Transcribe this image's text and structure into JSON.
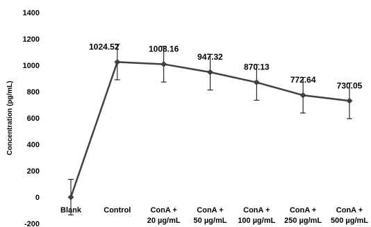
{
  "chart_data": {
    "type": "line",
    "title": "",
    "xlabel": "",
    "ylabel": "Concentration (pg/mL)",
    "ylim": [
      -200,
      1400
    ],
    "yticks": [
      -200,
      0,
      200,
      400,
      600,
      800,
      1000,
      1200,
      1400
    ],
    "ytick_labels": [
      "-200",
      "0",
      "200",
      "400",
      "600",
      "800",
      "1000",
      "1200",
      "1400"
    ],
    "grid": false,
    "legend": "none",
    "categories": [
      [
        "Blank"
      ],
      [
        "Control"
      ],
      [
        "ConA +",
        "20 µg/mL"
      ],
      [
        "ConA +",
        "50 µg/mL"
      ],
      [
        "ConA +",
        "100 µg/mL"
      ],
      [
        "ConA +",
        "250 µg/mL"
      ],
      [
        "ConA +",
        "500 µg/mL"
      ]
    ],
    "series": [
      {
        "values": [
          0,
          1024.52,
          1008.16,
          947.32,
          870.13,
          772.64,
          730.05
        ],
        "error": [
          135,
          135,
          135,
          135,
          135,
          135,
          135
        ],
        "data_labels": [
          "",
          "1024.52",
          "1008.16",
          "947.32",
          "870.13",
          "772.64",
          "730.05"
        ],
        "color": "#404040"
      }
    ]
  }
}
